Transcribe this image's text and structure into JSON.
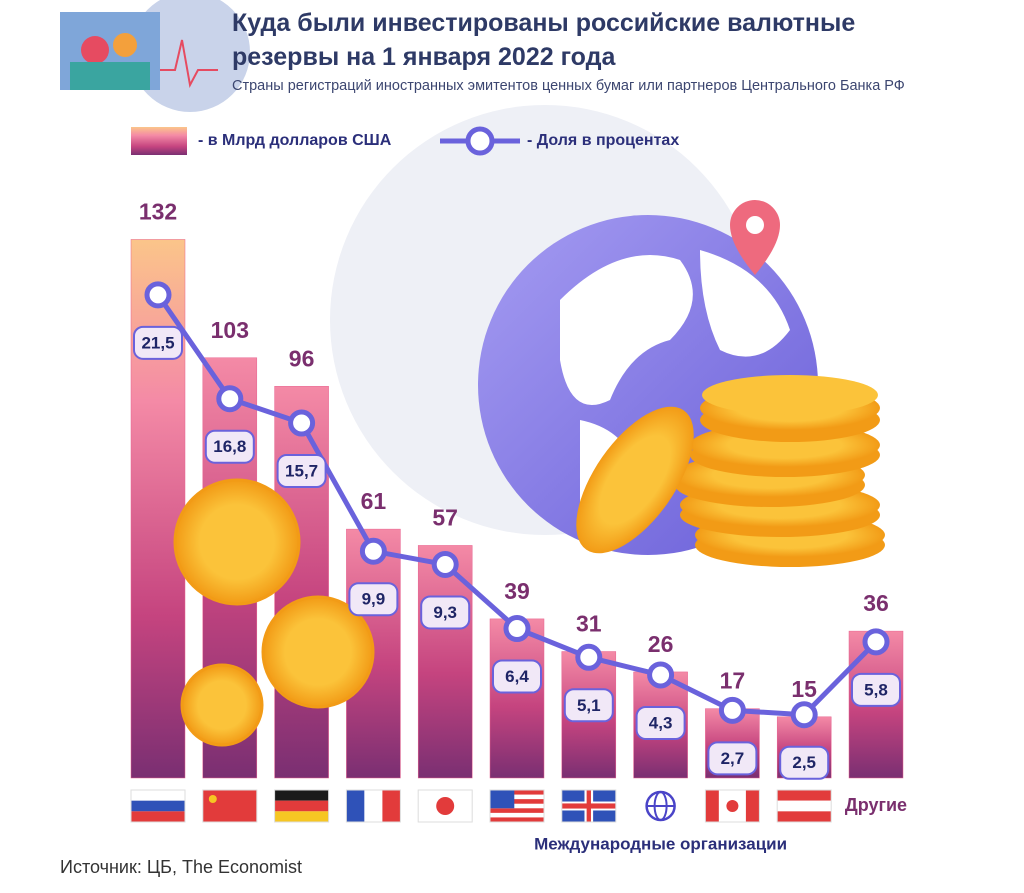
{
  "chart_data": {
    "type": "bar",
    "title": "Куда были инвестированы российские валютные резервы на 1 января 2022 года",
    "subtitle": "Страны регистраций иностранных эмитентов ценных бумаг или партнеров Центрального Банка РФ",
    "source": "Источник: ЦБ, The Economist",
    "categories": [
      null,
      null,
      null,
      null,
      null,
      null,
      null,
      "Международные организации",
      null,
      null,
      "Другие"
    ],
    "series": [
      {
        "name": "- в Млрд долларов США",
        "type": "bar",
        "color": "#e8628f",
        "values": [
          132,
          103,
          96,
          61,
          57,
          39,
          31,
          26,
          17,
          15,
          36
        ]
      },
      {
        "name": "- Доля в процентах",
        "type": "line",
        "color": "#6a62dc",
        "values": [
          21.5,
          16.8,
          15.7,
          9.9,
          9.3,
          6.4,
          5.1,
          4.3,
          2.7,
          2.5,
          5.8
        ],
        "value_labels": [
          "21,5",
          "16,8",
          "15,7",
          "9,9",
          "9,3",
          "6,4",
          "5,1",
          "4,3",
          "2,7",
          "2,5",
          "5,8"
        ]
      }
    ]
  }
}
